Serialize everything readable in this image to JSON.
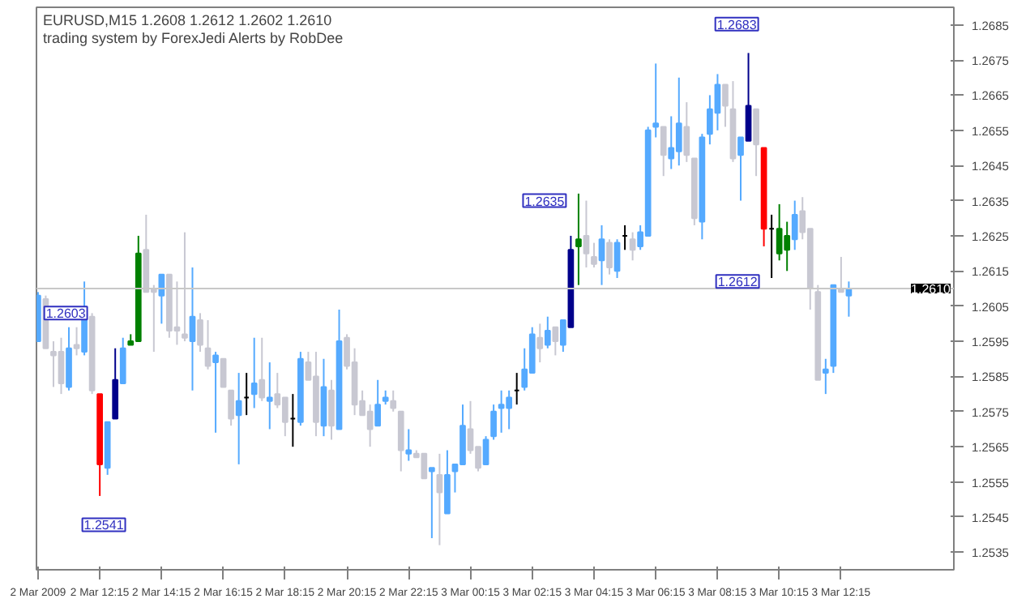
{
  "chart_data": {
    "type": "candlestick",
    "title": "EURUSD,M15  1.2608 1.2612 1.2602 1.2610",
    "subtitle": "trading system by ForexJedi    Alerts by RobDee",
    "x": [
      "2009-03-02T10:15",
      "2009-03-02T10:30",
      "2009-03-02T10:45",
      "2009-03-02T11:00",
      "2009-03-02T11:15",
      "2009-03-02T11:30",
      "2009-03-02T11:45",
      "2009-03-02T12:00",
      "2009-03-02T12:15",
      "2009-03-02T12:30",
      "2009-03-02T12:45",
      "2009-03-02T13:00",
      "2009-03-02T13:15",
      "2009-03-02T13:30",
      "2009-03-02T13:45",
      "2009-03-02T14:00",
      "2009-03-02T14:15",
      "2009-03-02T14:30",
      "2009-03-02T14:45",
      "2009-03-02T15:00",
      "2009-03-02T15:15",
      "2009-03-02T15:30",
      "2009-03-02T15:45",
      "2009-03-02T16:00",
      "2009-03-02T16:15",
      "2009-03-02T16:30",
      "2009-03-02T16:45",
      "2009-03-02T17:00",
      "2009-03-02T17:15",
      "2009-03-02T17:30",
      "2009-03-02T17:45",
      "2009-03-02T18:00",
      "2009-03-02T18:15",
      "2009-03-02T18:30",
      "2009-03-02T18:45",
      "2009-03-02T19:00",
      "2009-03-02T19:15",
      "2009-03-02T19:30",
      "2009-03-02T19:45",
      "2009-03-02T20:00",
      "2009-03-02T20:15",
      "2009-03-02T20:30",
      "2009-03-02T20:45",
      "2009-03-02T21:00",
      "2009-03-02T21:15",
      "2009-03-02T21:30",
      "2009-03-02T21:45",
      "2009-03-02T22:00",
      "2009-03-02T22:15",
      "2009-03-02T22:30",
      "2009-03-02T22:45",
      "2009-03-02T23:00",
      "2009-03-02T23:15",
      "2009-03-02T23:30",
      "2009-03-02T23:45",
      "2009-03-03T00:00",
      "2009-03-03T00:15",
      "2009-03-03T00:30",
      "2009-03-03T00:45",
      "2009-03-03T01:00",
      "2009-03-03T01:15",
      "2009-03-03T01:30",
      "2009-03-03T01:45",
      "2009-03-03T02:00",
      "2009-03-03T02:15",
      "2009-03-03T02:30",
      "2009-03-03T02:45",
      "2009-03-03T03:00",
      "2009-03-03T03:15",
      "2009-03-03T03:30",
      "2009-03-03T03:45",
      "2009-03-03T04:00",
      "2009-03-03T04:15",
      "2009-03-03T04:30",
      "2009-03-03T04:45",
      "2009-03-03T05:00",
      "2009-03-03T05:15",
      "2009-03-03T05:30",
      "2009-03-03T05:45",
      "2009-03-03T06:00",
      "2009-03-03T06:15",
      "2009-03-03T06:30",
      "2009-03-03T06:45",
      "2009-03-03T07:00",
      "2009-03-03T07:15",
      "2009-03-03T07:30",
      "2009-03-03T07:45",
      "2009-03-03T08:00",
      "2009-03-03T08:15",
      "2009-03-03T08:30",
      "2009-03-03T08:45",
      "2009-03-03T09:00",
      "2009-03-03T09:15",
      "2009-03-03T09:30",
      "2009-03-03T09:45",
      "2009-03-03T10:00",
      "2009-03-03T10:15",
      "2009-03-03T10:30",
      "2009-03-03T10:45",
      "2009-03-03T11:00",
      "2009-03-03T11:15",
      "2009-03-03T11:30",
      "2009-03-03T11:45",
      "2009-03-03T12:00",
      "2009-03-03T12:15",
      "2009-03-03T12:30"
    ],
    "ohlc": [
      [
        1.2595,
        1.2609,
        1.2595,
        1.2608
      ],
      [
        1.2607,
        1.2608,
        1.2593,
        1.2593
      ],
      [
        1.2592,
        1.2595,
        1.2582,
        1.2591
      ],
      [
        1.2592,
        1.2596,
        1.258,
        1.2583
      ],
      [
        1.2582,
        1.2599,
        1.2581,
        1.2593
      ],
      [
        1.2594,
        1.2599,
        1.2591,
        1.2593
      ],
      [
        1.2592,
        1.2612,
        1.2591,
        1.2601
      ],
      [
        1.2602,
        1.2603,
        1.258,
        1.2581
      ],
      [
        1.258,
        1.258,
        1.2551,
        1.256
      ],
      [
        1.2559,
        1.2572,
        1.2557,
        1.2572
      ],
      [
        1.2573,
        1.2593,
        1.2573,
        1.2584
      ],
      [
        1.2583,
        1.2596,
        1.2583,
        1.2593
      ],
      [
        1.2594,
        1.2597,
        1.2594,
        1.2595
      ],
      [
        1.2595,
        1.2625,
        1.2595,
        1.262
      ],
      [
        1.2621,
        1.2631,
        1.2609,
        1.2609
      ],
      [
        1.261,
        1.2611,
        1.2592,
        1.2609
      ],
      [
        1.2608,
        1.2614,
        1.26,
        1.2614
      ],
      [
        1.2614,
        1.2614,
        1.2596,
        1.2598
      ],
      [
        1.2599,
        1.2612,
        1.2594,
        1.2598
      ],
      [
        1.2597,
        1.2626,
        1.2595,
        1.2596
      ],
      [
        1.2595,
        1.2616,
        1.2581,
        1.2602
      ],
      [
        1.2601,
        1.2603,
        1.2592,
        1.2594
      ],
      [
        1.2593,
        1.2601,
        1.2587,
        1.2588
      ],
      [
        1.2589,
        1.2592,
        1.2569,
        1.2591
      ],
      [
        1.259,
        1.259,
        1.2582,
        1.2582
      ],
      [
        1.2581,
        1.2581,
        1.2571,
        1.2573
      ],
      [
        1.2574,
        1.2586,
        1.256,
        1.2578
      ],
      [
        1.2579,
        1.2586,
        1.2574,
        1.2579
      ],
      [
        1.258,
        1.2596,
        1.2576,
        1.2583
      ],
      [
        1.2584,
        1.2596,
        1.2578,
        1.2579
      ],
      [
        1.2578,
        1.2589,
        1.257,
        1.2579
      ],
      [
        1.258,
        1.2586,
        1.2576,
        1.2577
      ],
      [
        1.2579,
        1.2579,
        1.2568,
        1.2572
      ],
      [
        1.2573,
        1.258,
        1.2565,
        1.2573
      ],
      [
        1.2572,
        1.2592,
        1.2571,
        1.259
      ],
      [
        1.2589,
        1.2592,
        1.2584,
        1.2584
      ],
      [
        1.2585,
        1.2592,
        1.2568,
        1.2572
      ],
      [
        1.2571,
        1.259,
        1.2568,
        1.2582
      ],
      [
        1.2581,
        1.2584,
        1.2567,
        1.2571
      ],
      [
        1.257,
        1.2604,
        1.257,
        1.2595
      ],
      [
        1.2596,
        1.2597,
        1.2587,
        1.2588
      ],
      [
        1.2589,
        1.2593,
        1.2574,
        1.2577
      ],
      [
        1.2578,
        1.2581,
        1.2574,
        1.2574
      ],
      [
        1.2575,
        1.2577,
        1.2565,
        1.257
      ],
      [
        1.2571,
        1.2584,
        1.2571,
        1.2577
      ],
      [
        1.2578,
        1.2581,
        1.2577,
        1.2579
      ],
      [
        1.2578,
        1.2581,
        1.2575,
        1.2576
      ],
      [
        1.2575,
        1.2575,
        1.2558,
        1.2564
      ],
      [
        1.2563,
        1.257,
        1.2561,
        1.2564
      ],
      [
        1.2563,
        1.2564,
        1.2562,
        1.2562
      ],
      [
        1.2563,
        1.2563,
        1.2556,
        1.2556
      ],
      [
        1.2558,
        1.2559,
        1.2539,
        1.2559
      ],
      [
        1.2557,
        1.2563,
        1.2537,
        1.2552
      ],
      [
        1.2546,
        1.2564,
        1.2546,
        1.2557
      ],
      [
        1.2558,
        1.256,
        1.2552,
        1.256
      ],
      [
        1.256,
        1.2577,
        1.256,
        1.2571
      ],
      [
        1.257,
        1.2578,
        1.2563,
        1.2564
      ],
      [
        1.2565,
        1.2565,
        1.2558,
        1.2559
      ],
      [
        1.256,
        1.2568,
        1.256,
        1.2567
      ],
      [
        1.2568,
        1.2577,
        1.2567,
        1.2575
      ],
      [
        1.2576,
        1.2581,
        1.2569,
        1.2577
      ],
      [
        1.2576,
        1.2581,
        1.257,
        1.2579
      ],
      [
        1.2581,
        1.2586,
        1.2577,
        1.2581
      ],
      [
        1.2582,
        1.2593,
        1.2581,
        1.2587
      ],
      [
        1.2586,
        1.2599,
        1.2586,
        1.2597
      ],
      [
        1.2596,
        1.26,
        1.2589,
        1.2593
      ],
      [
        1.2594,
        1.2602,
        1.2593,
        1.2598
      ],
      [
        1.2599,
        1.2599,
        1.2591,
        1.2595
      ],
      [
        1.2594,
        1.2601,
        1.2592,
        1.2601
      ],
      [
        1.2599,
        1.2625,
        1.2599,
        1.2621
      ],
      [
        1.2622,
        1.2637,
        1.2611,
        1.2624
      ],
      [
        1.2625,
        1.2635,
        1.2616,
        1.262
      ],
      [
        1.2619,
        1.2623,
        1.2616,
        1.2617
      ],
      [
        1.2618,
        1.2628,
        1.2611,
        1.2624
      ],
      [
        1.2623,
        1.2624,
        1.2614,
        1.2616
      ],
      [
        1.2615,
        1.2624,
        1.2613,
        1.2623
      ],
      [
        1.2625,
        1.2628,
        1.2621,
        1.2625
      ],
      [
        1.2624,
        1.2626,
        1.2618,
        1.2621
      ],
      [
        1.2622,
        1.2628,
        1.2621,
        1.2626
      ],
      [
        1.2625,
        1.2656,
        1.2625,
        1.2655
      ],
      [
        1.2656,
        1.2674,
        1.2653,
        1.2657
      ],
      [
        1.2656,
        1.2656,
        1.2642,
        1.2648
      ],
      [
        1.2647,
        1.2659,
        1.2644,
        1.265
      ],
      [
        1.2649,
        1.267,
        1.2645,
        1.2657
      ],
      [
        1.2656,
        1.2663,
        1.2646,
        1.2648
      ],
      [
        1.2647,
        1.2647,
        1.2628,
        1.263
      ],
      [
        1.2629,
        1.2654,
        1.2624,
        1.2653
      ],
      [
        1.2654,
        1.2665,
        1.2651,
        1.2661
      ],
      [
        1.266,
        1.2671,
        1.2655,
        1.2668
      ],
      [
        1.2668,
        1.2668,
        1.2656,
        1.2662
      ],
      [
        1.2661,
        1.2669,
        1.2646,
        1.2647
      ],
      [
        1.2648,
        1.2653,
        1.2635,
        1.2653
      ],
      [
        1.2652,
        1.2677,
        1.2652,
        1.2662
      ],
      [
        1.2661,
        1.2661,
        1.2642,
        1.2651
      ],
      [
        1.265,
        1.265,
        1.2622,
        1.2627
      ],
      [
        1.2627,
        1.2631,
        1.2613,
        1.2627
      ],
      [
        1.262,
        1.2634,
        1.2618,
        1.2627
      ],
      [
        1.2621,
        1.2629,
        1.2615,
        1.2625
      ],
      [
        1.2624,
        1.2635,
        1.2621,
        1.2631
      ],
      [
        1.2632,
        1.2636,
        1.2624,
        1.2626
      ],
      [
        1.2627,
        1.2627,
        1.2604,
        1.261
      ],
      [
        1.2609,
        1.2611,
        1.2584,
        1.2584
      ],
      [
        1.2586,
        1.259,
        1.258,
        1.2587
      ],
      [
        1.2588,
        1.2611,
        1.2586,
        1.2611
      ],
      [
        1.261,
        1.2619,
        1.2609,
        1.2609
      ],
      [
        1.2608,
        1.2612,
        1.2602,
        1.261
      ]
    ],
    "colors": [
      "#55aaff",
      "#c8c8d2",
      "#c8c8d2",
      "#c8c8d2",
      "#55aaff",
      "#c8c8d2",
      "#55aaff",
      "#c8c8d2",
      "#ff0000",
      "#55aaff",
      "#00008b",
      "#55aaff",
      "#008000",
      "#008000",
      "#c8c8d2",
      "#c8c8d2",
      "#55aaff",
      "#c8c8d2",
      "#c8c8d2",
      "#c8c8d2",
      "#55aaff",
      "#c8c8d2",
      "#c8c8d2",
      "#55aaff",
      "#c8c8d2",
      "#c8c8d2",
      "#55aaff",
      "#000000",
      "#55aaff",
      "#c8c8d2",
      "#55aaff",
      "#c8c8d2",
      "#c8c8d2",
      "#000000",
      "#55aaff",
      "#c8c8d2",
      "#c8c8d2",
      "#55aaff",
      "#c8c8d2",
      "#55aaff",
      "#c8c8d2",
      "#c8c8d2",
      "#c8c8d2",
      "#c8c8d2",
      "#55aaff",
      "#55aaff",
      "#c8c8d2",
      "#c8c8d2",
      "#55aaff",
      "#c8c8d2",
      "#c8c8d2",
      "#55aaff",
      "#c8c8d2",
      "#55aaff",
      "#55aaff",
      "#55aaff",
      "#c8c8d2",
      "#c8c8d2",
      "#55aaff",
      "#55aaff",
      "#55aaff",
      "#55aaff",
      "#000000",
      "#55aaff",
      "#55aaff",
      "#c8c8d2",
      "#55aaff",
      "#c8c8d2",
      "#55aaff",
      "#00008b",
      "#008000",
      "#c8c8d2",
      "#c8c8d2",
      "#55aaff",
      "#c8c8d2",
      "#55aaff",
      "#000000",
      "#c8c8d2",
      "#55aaff",
      "#55aaff",
      "#55aaff",
      "#c8c8d2",
      "#55aaff",
      "#55aaff",
      "#c8c8d2",
      "#c8c8d2",
      "#55aaff",
      "#55aaff",
      "#55aaff",
      "#c8c8d2",
      "#c8c8d2",
      "#55aaff",
      "#00008b",
      "#c8c8d2",
      "#ff0000",
      "#000000",
      "#008000",
      "#008000",
      "#55aaff",
      "#c8c8d2",
      "#c8c8d2",
      "#c8c8d2",
      "#55aaff",
      "#55aaff",
      "#c8c8d2",
      "#55aaff"
    ],
    "xlim": [
      "2009-03-02T10:12",
      "2009-03-03T15:54"
    ],
    "xticks": [
      {
        "value": "2009-03-02T10:15",
        "label": "2 Mar 2009"
      },
      {
        "value": "2009-03-02T12:15",
        "label": "2 Mar 12:15"
      },
      {
        "value": "2009-03-02T14:15",
        "label": "2 Mar 14:15"
      },
      {
        "value": "2009-03-02T16:15",
        "label": "2 Mar 16:15"
      },
      {
        "value": "2009-03-02T18:15",
        "label": "2 Mar 18:15"
      },
      {
        "value": "2009-03-02T20:15",
        "label": "2 Mar 20:15"
      },
      {
        "value": "2009-03-02T22:15",
        "label": "2 Mar 22:15"
      },
      {
        "value": "2009-03-03T00:15",
        "label": "3 Mar 00:15"
      },
      {
        "value": "2009-03-03T02:15",
        "label": "3 Mar 02:15"
      },
      {
        "value": "2009-03-03T04:15",
        "label": "3 Mar 04:15"
      },
      {
        "value": "2009-03-03T06:15",
        "label": "3 Mar 06:15"
      },
      {
        "value": "2009-03-03T08:15",
        "label": "3 Mar 08:15"
      },
      {
        "value": "2009-03-03T10:15",
        "label": "3 Mar 10:15"
      },
      {
        "value": "2009-03-03T12:15",
        "label": "3 Mar 12:15"
      }
    ],
    "ylim": [
      1.253,
      1.269
    ],
    "yticks": [
      1.2535,
      1.2545,
      1.2555,
      1.2565,
      1.2575,
      1.2585,
      1.2595,
      1.2605,
      1.2615,
      1.2625,
      1.2635,
      1.2645,
      1.2655,
      1.2665,
      1.2675,
      1.2685
    ],
    "ref_lines": [
      {
        "axis": "y",
        "value": 1.261,
        "label": "1.2610",
        "color": "#c8c8c8"
      }
    ],
    "annotations": [
      {
        "text": "1.2603",
        "x": "2009-03-02T12:00",
        "y": 1.2603
      },
      "1.2541",
      {
        "text": "1.2635",
        "x": "2009-03-03T03:30",
        "y": 1.2635
      },
      "1.2683",
      {
        "text": "1.2612",
        "x": "2009-03-03T09:45",
        "y": 1.2612
      }
    ]
  }
}
